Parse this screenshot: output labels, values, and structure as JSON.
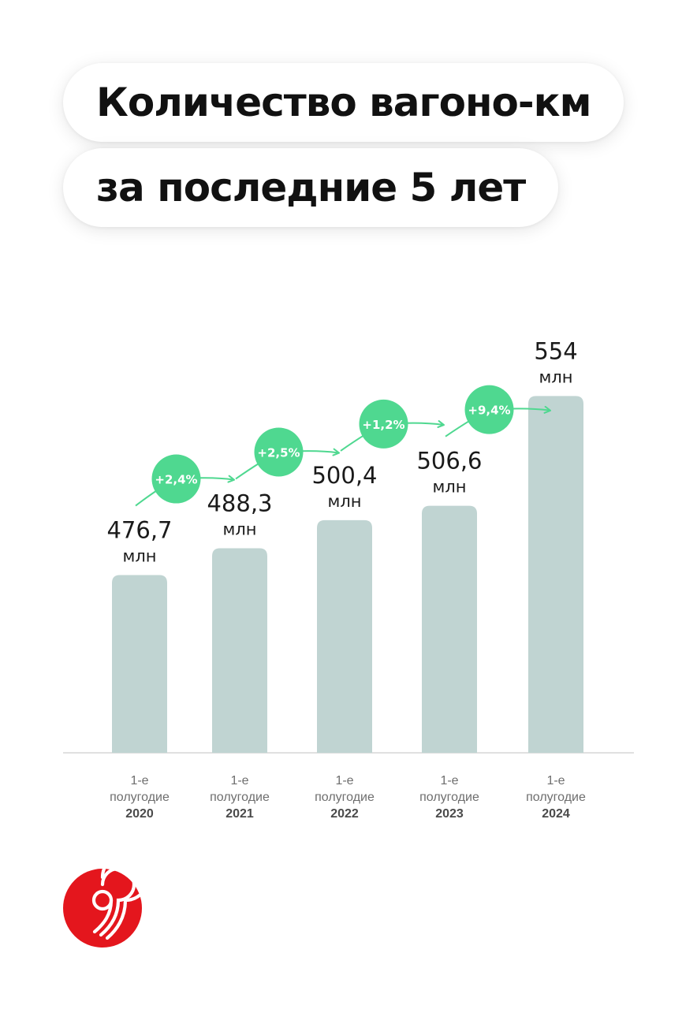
{
  "header": {
    "title_line1": "Количество вагоно-км",
    "title_line2": "за последние 5 лет"
  },
  "logo": {
    "icon": "brand-logo-icon",
    "color": "#e4161d"
  },
  "colors": {
    "bar": "#c0d4d2",
    "badge": "#4fd890",
    "arrow": "#4fd890",
    "axis": "#d6d6d6"
  },
  "chart_data": {
    "type": "bar",
    "categories": [
      "1-е полугодие 2020",
      "1-е полугодие 2021",
      "1-е полугодие 2022",
      "1-е полугодие 2023",
      "1-е полугодие 2024"
    ],
    "category_lines": [
      [
        "1-е",
        "полугодие",
        "2020"
      ],
      [
        "1-е",
        "полугодие",
        "2021"
      ],
      [
        "1-е",
        "полугодие",
        "2022"
      ],
      [
        "1-е",
        "полугодие",
        "2023"
      ],
      [
        "1-е",
        "полугодие",
        "2024"
      ]
    ],
    "values": [
      476.7,
      488.3,
      500.4,
      506.6,
      554
    ],
    "value_labels": [
      "476,7",
      "488,3",
      "500,4",
      "506,6",
      "554"
    ],
    "unit": "млн",
    "growth_labels": [
      "+2,4%",
      "+2,5%",
      "+1,2%",
      "+9,4%"
    ],
    "ylim": [
      400,
      565
    ],
    "grid": false
  }
}
